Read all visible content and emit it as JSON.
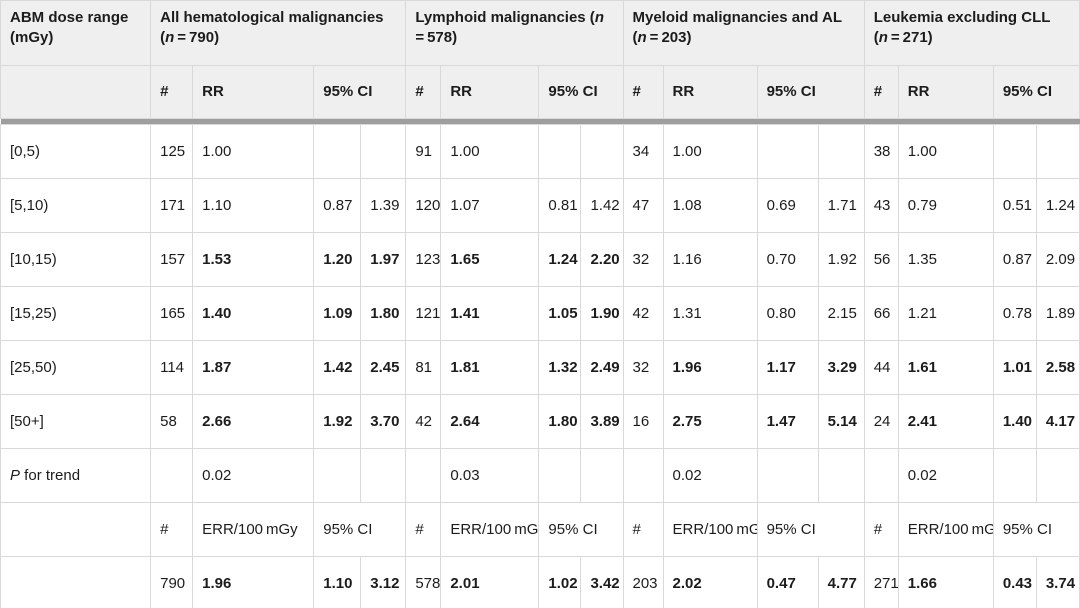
{
  "colors": {
    "header_bg": "#efefef",
    "cell_border": "#d9d9d9",
    "separator_bar": "#9e9e9e",
    "text": "#1c1c1c",
    "row_bg": "#ffffff"
  },
  "header": {
    "row_label": "ABM dose range (mGy)",
    "groups": [
      {
        "pre": "All hematological malignancies (",
        "n": "n",
        "post": " = 790)"
      },
      {
        "pre": "Lymphoid malignancies (",
        "n": "n",
        "post": " = 578)"
      },
      {
        "pre": "Myeloid malignancies and AL (",
        "n": "n",
        "post": " = 203)"
      },
      {
        "pre": "Leukemia excluding CLL (",
        "n": "n",
        "post": " = 271)"
      }
    ],
    "sub": {
      "num": "#",
      "rr": "RR",
      "ci": "95% CI"
    }
  },
  "body": {
    "dose_rows": [
      {
        "label": "[0,5)",
        "groups": [
          {
            "n": "125",
            "rr": "1.00",
            "lo": "",
            "hi": "",
            "strong": false
          },
          {
            "n": "91",
            "rr": "1.00",
            "lo": "",
            "hi": "",
            "strong": false
          },
          {
            "n": "34",
            "rr": "1.00",
            "lo": "",
            "hi": "",
            "strong": false
          },
          {
            "n": "38",
            "rr": "1.00",
            "lo": "",
            "hi": "",
            "strong": false
          }
        ]
      },
      {
        "label": "[5,10)",
        "groups": [
          {
            "n": "171",
            "rr": "1.10",
            "lo": "0.87",
            "hi": "1.39",
            "strong": false
          },
          {
            "n": "120",
            "rr": "1.07",
            "lo": "0.81",
            "hi": "1.42",
            "strong": false
          },
          {
            "n": "47",
            "rr": "1.08",
            "lo": "0.69",
            "hi": "1.71",
            "strong": false
          },
          {
            "n": "43",
            "rr": "0.79",
            "lo": "0.51",
            "hi": "1.24",
            "strong": false
          }
        ]
      },
      {
        "label": "[10,15)",
        "groups": [
          {
            "n": "157",
            "rr": "1.53",
            "lo": "1.20",
            "hi": "1.97",
            "strong": true
          },
          {
            "n": "123",
            "rr": "1.65",
            "lo": "1.24",
            "hi": "2.20",
            "strong": true
          },
          {
            "n": "32",
            "rr": "1.16",
            "lo": "0.70",
            "hi": "1.92",
            "strong": false
          },
          {
            "n": "56",
            "rr": "1.35",
            "lo": "0.87",
            "hi": "2.09",
            "strong": false
          }
        ]
      },
      {
        "label": "[15,25)",
        "groups": [
          {
            "n": "165",
            "rr": "1.40",
            "lo": "1.09",
            "hi": "1.80",
            "strong": true
          },
          {
            "n": "121",
            "rr": "1.41",
            "lo": "1.05",
            "hi": "1.90",
            "strong": true
          },
          {
            "n": "42",
            "rr": "1.31",
            "lo": "0.80",
            "hi": "2.15",
            "strong": false
          },
          {
            "n": "66",
            "rr": "1.21",
            "lo": "0.78",
            "hi": "1.89",
            "strong": false
          }
        ]
      },
      {
        "label": "[25,50)",
        "groups": [
          {
            "n": "114",
            "rr": "1.87",
            "lo": "1.42",
            "hi": "2.45",
            "strong": true
          },
          {
            "n": "81",
            "rr": "1.81",
            "lo": "1.32",
            "hi": "2.49",
            "strong": true
          },
          {
            "n": "32",
            "rr": "1.96",
            "lo": "1.17",
            "hi": "3.29",
            "strong": true
          },
          {
            "n": "44",
            "rr": "1.61",
            "lo": "1.01",
            "hi": "2.58",
            "strong": true
          }
        ]
      },
      {
        "label": "[50+]",
        "groups": [
          {
            "n": "58",
            "rr": "2.66",
            "lo": "1.92",
            "hi": "3.70",
            "strong": true
          },
          {
            "n": "42",
            "rr": "2.64",
            "lo": "1.80",
            "hi": "3.89",
            "strong": true
          },
          {
            "n": "16",
            "rr": "2.75",
            "lo": "1.47",
            "hi": "5.14",
            "strong": true
          },
          {
            "n": "24",
            "rr": "2.41",
            "lo": "1.40",
            "hi": "4.17",
            "strong": true
          }
        ]
      }
    ],
    "p_trend": {
      "label_p": "P",
      "label_rest": " for trend",
      "values": [
        "0.02",
        "0.03",
        "0.02",
        "0.02"
      ]
    },
    "err_header": {
      "num": "#",
      "err": "ERR/100 mGy",
      "ci": "95% CI"
    },
    "err_row": {
      "groups": [
        {
          "n": "790",
          "err": "1.96",
          "lo": "1.10",
          "hi": "3.12"
        },
        {
          "n": "578",
          "err": "2.01",
          "lo": "1.02",
          "hi": "3.42"
        },
        {
          "n": "203",
          "err": "2.02",
          "lo": "0.47",
          "hi": "4.77"
        },
        {
          "n": "271",
          "err": "1.66",
          "lo": "0.43",
          "hi": "3.74"
        }
      ]
    }
  }
}
